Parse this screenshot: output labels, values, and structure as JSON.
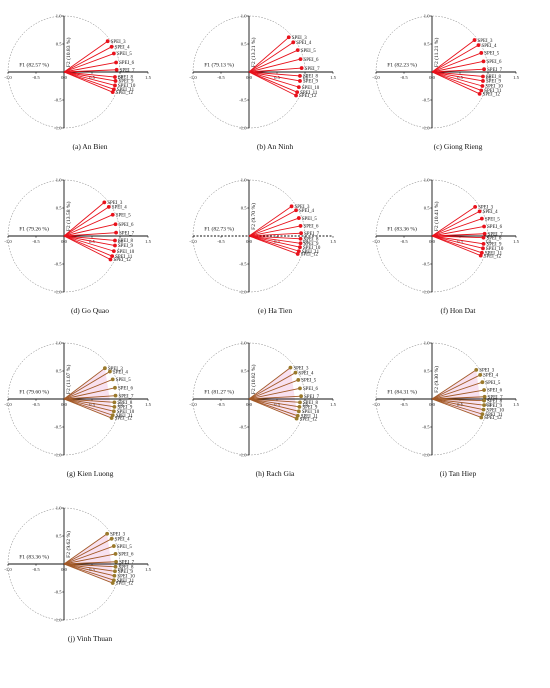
{
  "figure": {
    "circle_style": "dashed unit circle",
    "colors": {
      "vector_default": "#e8121c",
      "vector_alt": "#a35a28",
      "point_default": "#e8121c",
      "point_alt": "#9a7a2c",
      "shade_alt": "#f3c8e4"
    }
  },
  "chart_data": [
    {
      "type": "scatter",
      "caption": "(a) An Bien",
      "f1_label": "F1 (82.57 %)",
      "f2_label": "F2 (10.83 %)",
      "xlim": [
        -1,
        1.5
      ],
      "ylim": [
        -1,
        1
      ],
      "x_ticks": [
        "-1.0",
        "-0.5",
        "0.0",
        "0.5",
        "1.0",
        "1.5"
      ],
      "y_ticks": [
        "1.0",
        "0.5",
        "0.0",
        "-0.5",
        "-1.0"
      ],
      "style": "red",
      "points": [
        {
          "label": "SPEI_3",
          "x": 0.78,
          "y": 0.55
        },
        {
          "label": "SPEI_4",
          "x": 0.85,
          "y": 0.45
        },
        {
          "label": "SPEI_5",
          "x": 0.89,
          "y": 0.33
        },
        {
          "label": "SPEI_6",
          "x": 0.93,
          "y": 0.17
        },
        {
          "label": "SPEI_7",
          "x": 0.94,
          "y": 0.04
        },
        {
          "label": "SPEI_8",
          "x": 0.91,
          "y": -0.09
        },
        {
          "label": "SPEI_9",
          "x": 0.92,
          "y": -0.16
        },
        {
          "label": "SPEI_10",
          "x": 0.91,
          "y": -0.24
        },
        {
          "label": "SPEI_11",
          "x": 0.89,
          "y": -0.31
        },
        {
          "label": "SPEI_12",
          "x": 0.87,
          "y": -0.36
        }
      ]
    },
    {
      "type": "scatter",
      "caption": "(b) An Ninh",
      "f1_label": "F1 (79.13 %)",
      "f2_label": "F2 (13.21 %)",
      "xlim": [
        -1,
        1.5
      ],
      "ylim": [
        -1,
        1
      ],
      "x_ticks": [
        "-1.0",
        "-0.5",
        "0.0",
        "0.5",
        "1.0",
        "1.5"
      ],
      "y_ticks": [
        "1.0",
        "0.5",
        "0.0",
        "-0.5",
        "-1.0"
      ],
      "style": "red",
      "points": [
        {
          "label": "SPEI_3",
          "x": 0.71,
          "y": 0.62
        },
        {
          "label": "SPEI_4",
          "x": 0.79,
          "y": 0.53
        },
        {
          "label": "SPEI_5",
          "x": 0.87,
          "y": 0.39
        },
        {
          "label": "SPEI_6",
          "x": 0.92,
          "y": 0.23
        },
        {
          "label": "SPEI_7",
          "x": 0.94,
          "y": 0.07
        },
        {
          "label": "SPEI_8",
          "x": 0.91,
          "y": -0.07
        },
        {
          "label": "SPEI_9",
          "x": 0.91,
          "y": -0.16
        },
        {
          "label": "SPEI_10",
          "x": 0.89,
          "y": -0.27
        },
        {
          "label": "SPEI_11",
          "x": 0.86,
          "y": -0.36
        },
        {
          "label": "SPEI_12",
          "x": 0.84,
          "y": -0.42
        }
      ]
    },
    {
      "type": "scatter",
      "caption": "(c) Giong Rieng",
      "f1_label": "F1 (82.23 %)",
      "f2_label": "F2 (11.21 %)",
      "xlim": [
        -1,
        1.5
      ],
      "ylim": [
        -1,
        1
      ],
      "x_ticks": [
        "-1.0",
        "-0.5",
        "0.0",
        "0.5",
        "1.0",
        "1.5"
      ],
      "y_ticks": [
        "1.0",
        "0.5",
        "0.0",
        "-0.5",
        "-1.0"
      ],
      "style": "red",
      "points": [
        {
          "label": "SPEI_3",
          "x": 0.76,
          "y": 0.57
        },
        {
          "label": "SPEI_4",
          "x": 0.83,
          "y": 0.48
        },
        {
          "label": "SPEI_5",
          "x": 0.88,
          "y": 0.34
        },
        {
          "label": "SPEI_6",
          "x": 0.92,
          "y": 0.19
        },
        {
          "label": "SPEI_7",
          "x": 0.93,
          "y": 0.05
        },
        {
          "label": "SPEI_8",
          "x": 0.91,
          "y": -0.08
        },
        {
          "label": "SPEI_9",
          "x": 0.91,
          "y": -0.16
        },
        {
          "label": "SPEI_10",
          "x": 0.9,
          "y": -0.25
        },
        {
          "label": "SPEI_11",
          "x": 0.88,
          "y": -0.33
        },
        {
          "label": "SPEI_12",
          "x": 0.85,
          "y": -0.39
        }
      ]
    },
    {
      "type": "scatter",
      "caption": "(d) Go Quao",
      "f1_label": "F1 (79.26 %)",
      "f2_label": "F2 (13.58 %)",
      "xlim": [
        -1,
        1.5
      ],
      "ylim": [
        -1,
        1
      ],
      "x_ticks": [
        "-1.0",
        "-0.5",
        "0.0",
        "0.5",
        "1.0",
        "1.5"
      ],
      "y_ticks": [
        "1.0",
        "0.5",
        "0.0",
        "-0.5",
        "-1.0"
      ],
      "style": "red",
      "points": [
        {
          "label": "SPEI_3",
          "x": 0.72,
          "y": 0.6
        },
        {
          "label": "SPEI_4",
          "x": 0.8,
          "y": 0.52
        },
        {
          "label": "SPEI_5",
          "x": 0.87,
          "y": 0.38
        },
        {
          "label": "SPEI_6",
          "x": 0.92,
          "y": 0.21
        },
        {
          "label": "SPEI_7",
          "x": 0.93,
          "y": 0.06
        },
        {
          "label": "SPEI_8",
          "x": 0.91,
          "y": -0.08
        },
        {
          "label": "SPEI_9",
          "x": 0.91,
          "y": -0.17
        },
        {
          "label": "SPEI_10",
          "x": 0.89,
          "y": -0.27
        },
        {
          "label": "SPEI_11",
          "x": 0.86,
          "y": -0.36
        },
        {
          "label": "SPEI_12",
          "x": 0.83,
          "y": -0.42
        }
      ]
    },
    {
      "type": "scatter",
      "caption": "(e) Ha Tien",
      "f1_label": "F1 (82.73 %)",
      "f2_label": "F2 (9.70 %)",
      "xlim": [
        -1,
        1.5
      ],
      "ylim": [
        -1,
        1
      ],
      "x_ticks": [
        "-1.0",
        "-0.5",
        "0.0",
        "0.5",
        "1.0",
        "1.5"
      ],
      "y_ticks": [
        "1.0",
        "0.5",
        "0.0",
        "-0.5",
        "-1.0"
      ],
      "style": "red",
      "points": [
        {
          "label": "SPEI_3",
          "x": 0.76,
          "y": 0.53
        },
        {
          "label": "SPEI_4",
          "x": 0.84,
          "y": 0.46
        },
        {
          "label": "SPEI_5",
          "x": 0.89,
          "y": 0.32
        },
        {
          "label": "SPEI_6",
          "x": 0.92,
          "y": 0.18
        },
        {
          "label": "SPEI_7",
          "x": 0.93,
          "y": 0.05
        },
        {
          "label": "SPEI_8",
          "x": 0.92,
          "y": -0.05
        },
        {
          "label": "SPEI_9",
          "x": 0.92,
          "y": -0.13
        },
        {
          "label": "SPEI_10",
          "x": 0.91,
          "y": -0.2
        },
        {
          "label": "SPEI_11",
          "x": 0.89,
          "y": -0.27
        },
        {
          "label": "SPEI_12",
          "x": 0.87,
          "y": -0.32
        }
      ]
    },
    {
      "type": "scatter",
      "caption": "(f) Hon Dat",
      "f1_label": "F1 (83.36 %)",
      "f2_label": "F2 (10.41 %)",
      "xlim": [
        -1,
        1.5
      ],
      "ylim": [
        -1,
        1
      ],
      "x_ticks": [
        "-1.0",
        "-0.5",
        "0.0",
        "0.5",
        "1.0",
        "1.5"
      ],
      "y_ticks": [
        "1.0",
        "0.5",
        "0.0",
        "-0.5",
        "-1.0"
      ],
      "style": "red",
      "points": [
        {
          "label": "SPEI_3",
          "x": 0.77,
          "y": 0.52
        },
        {
          "label": "SPEI_4",
          "x": 0.85,
          "y": 0.44
        },
        {
          "label": "SPEI_5",
          "x": 0.89,
          "y": 0.31
        },
        {
          "label": "SPEI_6",
          "x": 0.93,
          "y": 0.17
        },
        {
          "label": "SPEI_7",
          "x": 0.94,
          "y": 0.04
        },
        {
          "label": "SPEI_8",
          "x": 0.92,
          "y": -0.03
        },
        {
          "label": "SPEI_9",
          "x": 0.92,
          "y": -0.14
        },
        {
          "label": "SPEI_10",
          "x": 0.91,
          "y": -0.22
        },
        {
          "label": "SPEI_11",
          "x": 0.89,
          "y": -0.3
        },
        {
          "label": "SPEI_12",
          "x": 0.87,
          "y": -0.35
        }
      ]
    },
    {
      "type": "scatter",
      "caption": "(g) Kien Luong",
      "f1_label": "F1 (79.60 %)",
      "f2_label": "F2 (11.07 %)",
      "xlim": [
        -1,
        1.5
      ],
      "ylim": [
        -1,
        1
      ],
      "x_ticks": [
        "-1.0",
        "-0.5",
        "0.0",
        "0.5",
        "1.0",
        "1.5"
      ],
      "y_ticks": [
        "1.0",
        "0.5",
        "0.0",
        "-0.5",
        "-1.0"
      ],
      "style": "alt",
      "points": [
        {
          "label": "SPEI_3",
          "x": 0.73,
          "y": 0.55
        },
        {
          "label": "SPEI_4",
          "x": 0.82,
          "y": 0.49
        },
        {
          "label": "SPEI_5",
          "x": 0.87,
          "y": 0.35
        },
        {
          "label": "SPEI_6",
          "x": 0.91,
          "y": 0.2
        },
        {
          "label": "SPEI_7",
          "x": 0.92,
          "y": 0.06
        },
        {
          "label": "SPEI_8",
          "x": 0.9,
          "y": -0.06
        },
        {
          "label": "SPEI_9",
          "x": 0.9,
          "y": -0.14
        },
        {
          "label": "SPEI_10",
          "x": 0.89,
          "y": -0.22
        },
        {
          "label": "SPEI_11",
          "x": 0.87,
          "y": -0.29
        },
        {
          "label": "SPEI_12",
          "x": 0.85,
          "y": -0.34
        }
      ]
    },
    {
      "type": "scatter",
      "caption": "(h) Rach Gia",
      "f1_label": "F1 (81.27 %)",
      "f2_label": "F2 (10.82 %)",
      "xlim": [
        -1,
        1.5
      ],
      "ylim": [
        -1,
        1
      ],
      "x_ticks": [
        "-1.0",
        "-0.5",
        "0.0",
        "0.5",
        "1.0",
        "1.5"
      ],
      "y_ticks": [
        "1.0",
        "0.5",
        "0.0",
        "-0.5",
        "-1.0"
      ],
      "style": "alt",
      "points": [
        {
          "label": "SPEI_3",
          "x": 0.74,
          "y": 0.56
        },
        {
          "label": "SPEI_4",
          "x": 0.83,
          "y": 0.47
        },
        {
          "label": "SPEI_5",
          "x": 0.88,
          "y": 0.34
        },
        {
          "label": "SPEI_6",
          "x": 0.91,
          "y": 0.19
        },
        {
          "label": "SPEI_7",
          "x": 0.93,
          "y": 0.05
        },
        {
          "label": "SPEI_8",
          "x": 0.91,
          "y": -0.06
        },
        {
          "label": "SPEI_9",
          "x": 0.9,
          "y": -0.14
        },
        {
          "label": "SPEI_10",
          "x": 0.89,
          "y": -0.22
        },
        {
          "label": "SPEI_11",
          "x": 0.87,
          "y": -0.3
        },
        {
          "label": "SPEI_12",
          "x": 0.85,
          "y": -0.35
        }
      ]
    },
    {
      "type": "scatter",
      "caption": "(i) Tan Hiep",
      "f1_label": "F1 (84.31 %)",
      "f2_label": "F2 (9.30 %)",
      "xlim": [
        -1,
        1.5
      ],
      "ylim": [
        -1,
        1
      ],
      "x_ticks": [
        "-1.0",
        "-0.5",
        "0.0",
        "0.5",
        "1.0",
        "1.5"
      ],
      "y_ticks": [
        "1.0",
        "0.5",
        "0.0",
        "-0.5",
        "-1.0"
      ],
      "style": "alt",
      "points": [
        {
          "label": "SPEI_3",
          "x": 0.79,
          "y": 0.52
        },
        {
          "label": "SPEI_4",
          "x": 0.86,
          "y": 0.43
        },
        {
          "label": "SPEI_5",
          "x": 0.9,
          "y": 0.3
        },
        {
          "label": "SPEI_6",
          "x": 0.93,
          "y": 0.16
        },
        {
          "label": "SPEI_7",
          "x": 0.94,
          "y": 0.04
        },
        {
          "label": "SPEI_8",
          "x": 0.93,
          "y": -0.03
        },
        {
          "label": "SPEI_9",
          "x": 0.93,
          "y": -0.11
        },
        {
          "label": "SPEI_10",
          "x": 0.92,
          "y": -0.19
        },
        {
          "label": "SPEI_11",
          "x": 0.9,
          "y": -0.27
        },
        {
          "label": "SPEI_12",
          "x": 0.88,
          "y": -0.33
        }
      ]
    },
    {
      "type": "scatter",
      "caption": "(j) Vinh Thuan",
      "f1_label": "F1 (83.36 %)",
      "f2_label": "F2 (9.62 %)",
      "xlim": [
        -1,
        1.5
      ],
      "ylim": [
        -1,
        1
      ],
      "x_ticks": [
        "-1.0",
        "-0.5",
        "0.0",
        "0.5",
        "1.0",
        "1.5"
      ],
      "y_ticks": [
        "1.0",
        "0.5",
        "0.0",
        "-0.5",
        "-1.0"
      ],
      "style": "alt",
      "points": [
        {
          "label": "SPEI_3",
          "x": 0.77,
          "y": 0.54
        },
        {
          "label": "SPEI_4",
          "x": 0.85,
          "y": 0.45
        },
        {
          "label": "SPEI_5",
          "x": 0.89,
          "y": 0.32
        },
        {
          "label": "SPEI_6",
          "x": 0.92,
          "y": 0.18
        },
        {
          "label": "SPEI_7",
          "x": 0.93,
          "y": 0.04
        },
        {
          "label": "SPEI_8",
          "x": 0.92,
          "y": -0.05
        },
        {
          "label": "SPEI_9",
          "x": 0.91,
          "y": -0.13
        },
        {
          "label": "SPEI_10",
          "x": 0.9,
          "y": -0.21
        },
        {
          "label": "SPEI_11",
          "x": 0.89,
          "y": -0.29
        },
        {
          "label": "SPEI_12",
          "x": 0.87,
          "y": -0.34
        }
      ]
    }
  ]
}
